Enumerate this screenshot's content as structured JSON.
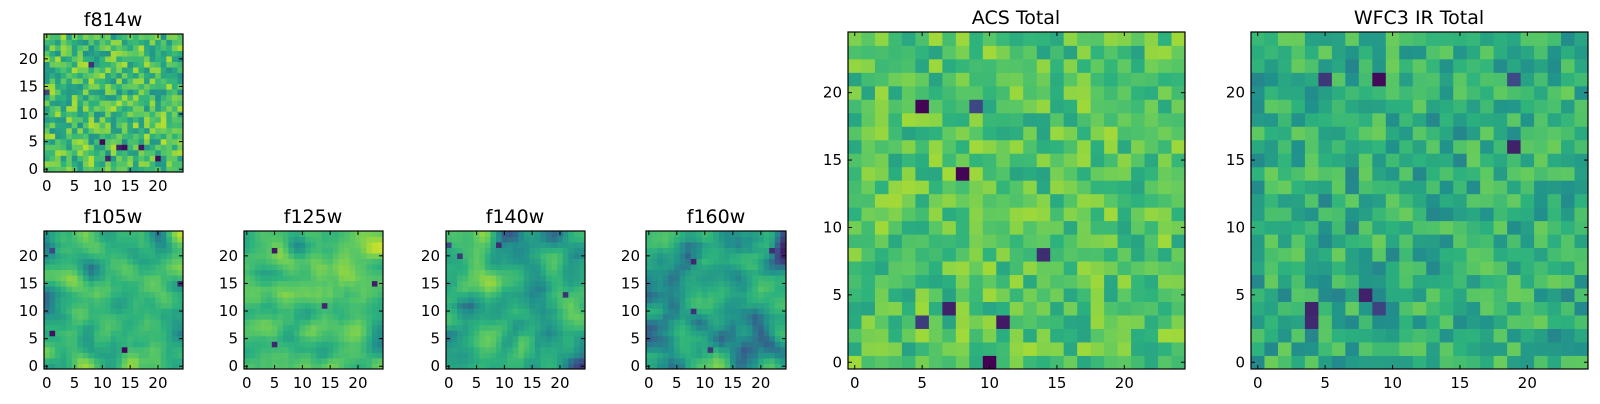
{
  "palette": [
    "#440154",
    "#3b528b",
    "#21918c",
    "#2db27d",
    "#5ec962",
    "#a8db34",
    "#fde725"
  ],
  "chart_data": [
    {
      "type": "heatmap",
      "title": "f814w",
      "grid_size": 25,
      "xticks": [
        0,
        5,
        10,
        15,
        20
      ],
      "yticks": [
        0,
        5,
        10,
        15,
        20
      ],
      "xlim": [
        -0.5,
        24.5
      ],
      "ylim": [
        -0.5,
        24.5
      ],
      "value_range": [
        0,
        1
      ],
      "texture": "fine",
      "mean": 0.6,
      "spread": 0.26,
      "seed": 11,
      "notes": "pixel-scale noise, mostly green/yellow with scattered dark pixels"
    },
    {
      "type": "heatmap",
      "title": "f105w",
      "grid_size": 25,
      "xticks": [
        0,
        5,
        10,
        15,
        20
      ],
      "yticks": [
        0,
        5,
        10,
        15,
        20
      ],
      "xlim": [
        -0.5,
        24.5
      ],
      "ylim": [
        -0.5,
        24.5
      ],
      "value_range": [
        0,
        1
      ],
      "texture": "smooth",
      "mean": 0.55,
      "spread": 0.32,
      "seed": 23
    },
    {
      "type": "heatmap",
      "title": "f125w",
      "grid_size": 25,
      "xticks": [
        0,
        5,
        10,
        15,
        20
      ],
      "yticks": [
        0,
        5,
        10,
        15,
        20
      ],
      "xlim": [
        -0.5,
        24.5
      ],
      "ylim": [
        -0.5,
        24.5
      ],
      "value_range": [
        0,
        1
      ],
      "texture": "smooth",
      "mean": 0.6,
      "spread": 0.3,
      "seed": 37
    },
    {
      "type": "heatmap",
      "title": "f140w",
      "grid_size": 25,
      "xticks": [
        0,
        5,
        10,
        15,
        20
      ],
      "yticks": [
        0,
        5,
        10,
        15,
        20
      ],
      "xlim": [
        -0.5,
        24.5
      ],
      "ylim": [
        -0.5,
        24.5
      ],
      "value_range": [
        0,
        1
      ],
      "texture": "smooth",
      "mean": 0.45,
      "spread": 0.34,
      "seed": 41
    },
    {
      "type": "heatmap",
      "title": "f160w",
      "grid_size": 25,
      "xticks": [
        0,
        5,
        10,
        15,
        20
      ],
      "yticks": [
        0,
        5,
        10,
        15,
        20
      ],
      "xlim": [
        -0.5,
        24.5
      ],
      "ylim": [
        -0.5,
        24.5
      ],
      "value_range": [
        0,
        1
      ],
      "texture": "smooth",
      "mean": 0.4,
      "spread": 0.34,
      "seed": 53
    },
    {
      "type": "heatmap",
      "title": "ACS Total",
      "grid_size": 25,
      "xticks": [
        0,
        5,
        10,
        15,
        20
      ],
      "yticks": [
        0,
        5,
        10,
        15,
        20
      ],
      "xlim": [
        -0.5,
        24.5
      ],
      "ylim": [
        -0.5,
        24.5
      ],
      "value_range": [
        0,
        1
      ],
      "texture": "fine",
      "mean": 0.62,
      "spread": 0.2,
      "seed": 67
    },
    {
      "type": "heatmap",
      "title": "WFC3 IR Total",
      "grid_size": 25,
      "xticks": [
        0,
        5,
        10,
        15,
        20
      ],
      "yticks": [
        0,
        5,
        10,
        15,
        20
      ],
      "xlim": [
        -0.5,
        24.5
      ],
      "ylim": [
        -0.5,
        24.5
      ],
      "value_range": [
        0,
        1
      ],
      "texture": "fine",
      "mean": 0.5,
      "spread": 0.2,
      "seed": 79
    }
  ]
}
